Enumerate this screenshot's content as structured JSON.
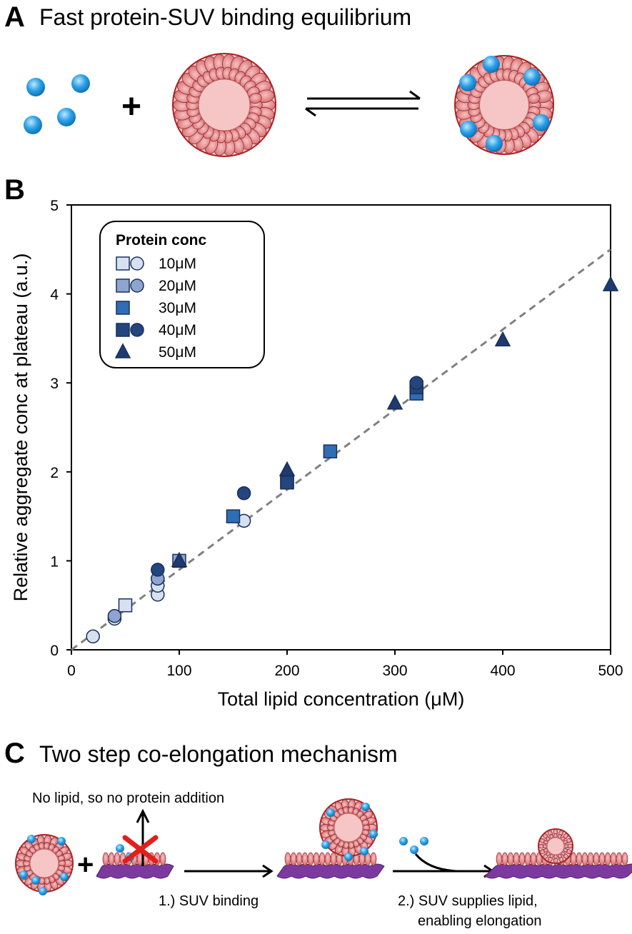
{
  "panel_a": {
    "letter": "A",
    "title": "Fast protein-SUV binding equilibrium",
    "plus": "+"
  },
  "panel_b": {
    "letter": "B"
  },
  "panel_c": {
    "letter": "C",
    "title": "Two step co-elongation mechanism",
    "no_lipid_note": "No lipid, so no protein addition",
    "plus": "+",
    "step1_label": "1.) SUV binding",
    "step2_label_line1": "2.) SUV supplies lipid,",
    "step2_label_line2": "enabling elongation"
  },
  "colors": {
    "protein": "#2aa0e6",
    "vesicle": "#e58b8b",
    "vesicle_core": "#f6c6c6",
    "fibril": "#7c3a9e",
    "marker_10": "#d6e0f0",
    "marker_20": "#8ea5cf",
    "marker_30": "#2f6db5",
    "marker_40": "#24457e",
    "marker_50": "#1f3a6e",
    "fit_line": "#808080",
    "cross": "#e0201c"
  },
  "chart_data": {
    "type": "scatter",
    "xlabel": "Total lipid concentration (μM)",
    "ylabel": "Relative aggregate conc at plateau (a.u.)",
    "xlim": [
      0,
      500
    ],
    "ylim": [
      0,
      5
    ],
    "xticks": [
      "0",
      "100",
      "200",
      "300",
      "400",
      "500"
    ],
    "yticks": [
      "0",
      "1",
      "2",
      "3",
      "4",
      "5"
    ],
    "legend_title": "Protein conc",
    "legend_position": "top-left",
    "fit_line": {
      "style": "dashed",
      "x": [
        0,
        500
      ],
      "y": [
        0,
        4.5
      ]
    },
    "series": [
      {
        "name": "10μM",
        "color_key": "marker_10",
        "markers": [
          "square",
          "circle"
        ],
        "points": [
          {
            "marker": "circle",
            "x": 20,
            "y": 0.15
          },
          {
            "marker": "circle",
            "x": 40,
            "y": 0.35
          },
          {
            "marker": "square",
            "x": 50,
            "y": 0.5
          },
          {
            "marker": "circle",
            "x": 80,
            "y": 0.62
          },
          {
            "marker": "circle",
            "x": 80,
            "y": 0.72
          },
          {
            "marker": "circle",
            "x": 160,
            "y": 1.45
          }
        ]
      },
      {
        "name": "20μM",
        "color_key": "marker_20",
        "markers": [
          "square",
          "circle"
        ],
        "points": [
          {
            "marker": "circle",
            "x": 40,
            "y": 0.38
          },
          {
            "marker": "circle",
            "x": 80,
            "y": 0.8
          },
          {
            "marker": "square",
            "x": 100,
            "y": 1.0
          }
        ]
      },
      {
        "name": "30μM",
        "color_key": "marker_30",
        "markers": [
          "square"
        ],
        "points": [
          {
            "marker": "square",
            "x": 150,
            "y": 1.5
          },
          {
            "marker": "square",
            "x": 200,
            "y": 1.9
          },
          {
            "marker": "square",
            "x": 240,
            "y": 2.23
          },
          {
            "marker": "square",
            "x": 320,
            "y": 2.88
          }
        ]
      },
      {
        "name": "40μM",
        "color_key": "marker_40",
        "markers": [
          "square",
          "circle"
        ],
        "points": [
          {
            "marker": "circle",
            "x": 80,
            "y": 0.9
          },
          {
            "marker": "square",
            "x": 200,
            "y": 1.88
          },
          {
            "marker": "circle",
            "x": 160,
            "y": 1.76
          },
          {
            "marker": "square",
            "x": 320,
            "y": 2.95
          },
          {
            "marker": "circle",
            "x": 320,
            "y": 3.0
          }
        ]
      },
      {
        "name": "50μM",
        "color_key": "marker_50",
        "markers": [
          "triangle"
        ],
        "points": [
          {
            "marker": "triangle",
            "x": 100,
            "y": 1.0
          },
          {
            "marker": "triangle",
            "x": 200,
            "y": 2.02
          },
          {
            "marker": "triangle",
            "x": 300,
            "y": 2.77
          },
          {
            "marker": "triangle",
            "x": 400,
            "y": 3.48
          },
          {
            "marker": "triangle",
            "x": 500,
            "y": 4.1
          }
        ]
      }
    ]
  }
}
